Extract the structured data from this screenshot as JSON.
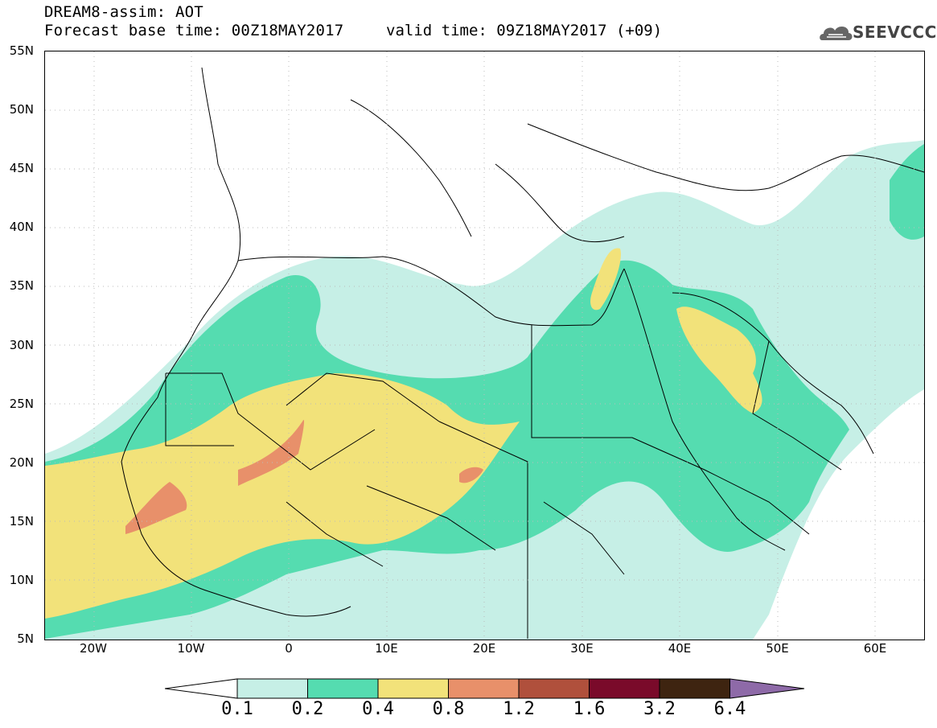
{
  "header": {
    "title": "DREAM8-assim: AOT",
    "base_time": "Forecast base time: 00Z18MAY2017",
    "valid_time": "valid time: 09Z18MAY2017 (+09)"
  },
  "logo": {
    "text": "SEEVCCC",
    "icon": "cloud-logo-icon"
  },
  "map": {
    "lat_labels": [
      "55N",
      "50N",
      "45N",
      "40N",
      "35N",
      "30N",
      "25N",
      "20N",
      "15N",
      "10N",
      "5N"
    ],
    "lon_labels": [
      "20W",
      "10W",
      "0",
      "10E",
      "20E",
      "30E",
      "40E",
      "50E",
      "60E"
    ],
    "extent": {
      "lon": [
        -25,
        65
      ],
      "lat": [
        5,
        55
      ]
    },
    "field": "Aerosol optical thickness"
  },
  "colorbar": {
    "labels": [
      "0.1",
      "0.2",
      "0.4",
      "0.8",
      "1.2",
      "1.6",
      "3.2",
      "6.4"
    ],
    "colors": [
      "#ffffff",
      "#c6efe6",
      "#55dcb0",
      "#f2e27a",
      "#e8906a",
      "#b0503c",
      "#7a0a2a",
      "#3e2410",
      "#8e6aa8"
    ]
  }
}
